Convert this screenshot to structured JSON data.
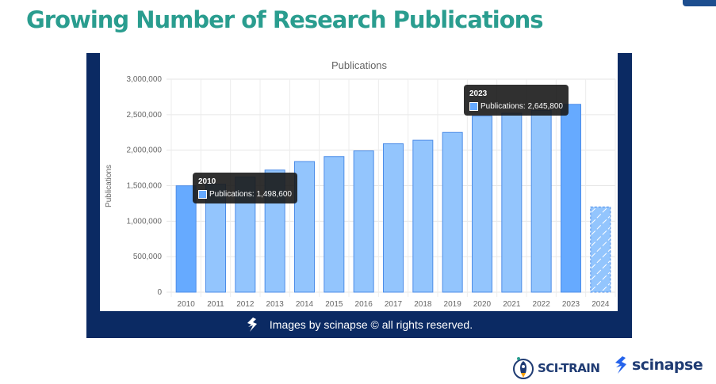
{
  "page": {
    "title": "Growing Number of Research Publications",
    "footer_text": "Images by scinapse © all rights reserved.",
    "logos": {
      "scitrain": "SCI-TRAIN",
      "scinapse": "scinapse"
    }
  },
  "colors": {
    "title": "#2a9d8f",
    "frame": "#0b2a63",
    "bar": "#93c5fd",
    "bar_highlight": "#66aaff",
    "bar_border": "#4d8de8",
    "logo_navy": "#1f3b73"
  },
  "chart_data": {
    "type": "bar",
    "title": "Publications",
    "xlabel": "",
    "ylabel": "Publications",
    "ylim": [
      0,
      3000000
    ],
    "yticks": [
      "0",
      "500,000",
      "1,000,000",
      "1,500,000",
      "2,000,000",
      "2,500,000",
      "3,000,000"
    ],
    "grid": true,
    "categories": [
      "2010",
      "2011",
      "2012",
      "2013",
      "2014",
      "2015",
      "2016",
      "2017",
      "2018",
      "2019",
      "2020",
      "2021",
      "2022",
      "2023",
      "2024"
    ],
    "series": [
      {
        "name": "Publications",
        "values": [
          1498600,
          1520000,
          1620000,
          1720000,
          1840000,
          1910000,
          1990000,
          2090000,
          2140000,
          2250000,
          2480000,
          2520000,
          2560000,
          2645800,
          1200000
        ]
      }
    ],
    "highlighted": [
      "2010",
      "2023"
    ],
    "partial_year": "2024",
    "tooltips": [
      {
        "title": "2010",
        "label": "Publications: 1,498,600"
      },
      {
        "title": "2023",
        "label": "Publications: 2,645,800"
      }
    ]
  }
}
